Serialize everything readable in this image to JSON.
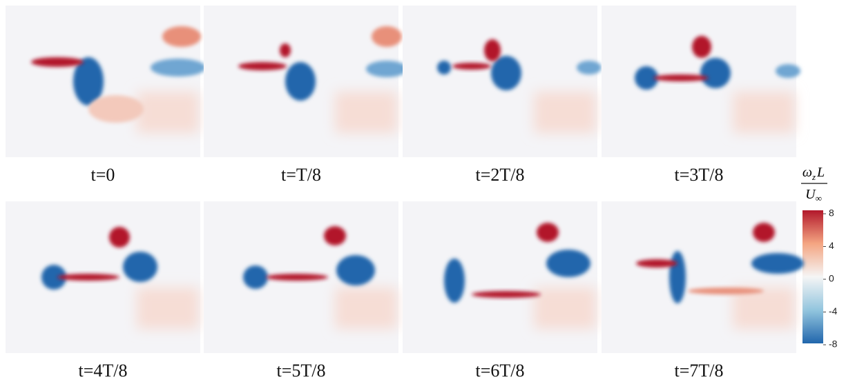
{
  "panels": [
    {
      "caption": "t=0"
    },
    {
      "caption": "t=T/8"
    },
    {
      "caption": "t=2T/8"
    },
    {
      "caption": "t=3T/8"
    },
    {
      "caption": "t=4T/8"
    },
    {
      "caption": "t=5T/8"
    },
    {
      "caption": "t=6T/8"
    },
    {
      "caption": "t=7T/8"
    }
  ],
  "colorbar": {
    "label": {
      "numerator_symbol": "ω",
      "numerator_subscript": "z",
      "numerator_rest": "L",
      "denominator_symbol": "U",
      "denominator_subscript": "∞"
    },
    "range": [
      -8,
      8
    ],
    "ticks": [
      8,
      4,
      0,
      -4,
      -8
    ],
    "colors": [
      "#2166ac",
      "#92c5de",
      "#f5f5f5",
      "#f4a582",
      "#b2182b"
    ]
  }
}
